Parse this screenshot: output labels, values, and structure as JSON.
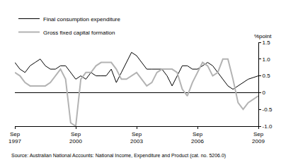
{
  "chart_data": {
    "type": "line",
    "y_label": "%point",
    "source": "Source: Australian National Accounts: National Income, Expenditure and Product (cat. no. 5206.0)",
    "categories": [
      "Sep 1997",
      null,
      null,
      null,
      null,
      null,
      null,
      null,
      null,
      null,
      null,
      null,
      "Sep 2000",
      null,
      null,
      null,
      null,
      null,
      null,
      null,
      null,
      null,
      null,
      null,
      "Sep 2003",
      null,
      null,
      null,
      null,
      null,
      null,
      null,
      null,
      null,
      null,
      null,
      "Sep 2006",
      null,
      null,
      null,
      null,
      null,
      null,
      null,
      null,
      null,
      null,
      null,
      "Sep 2009"
    ],
    "series": [
      {
        "name": "Final consumption expenditure",
        "color": "#000000",
        "values": [
          0.9,
          0.7,
          0.6,
          0.8,
          0.9,
          1.0,
          0.8,
          0.7,
          0.7,
          0.8,
          0.8,
          0.6,
          0.4,
          0.5,
          0.4,
          0.6,
          0.5,
          0.5,
          0.5,
          0.7,
          0.3,
          0.6,
          0.9,
          1.2,
          1.1,
          0.9,
          0.7,
          0.7,
          0.7,
          0.7,
          0.5,
          0.2,
          0.5,
          0.8,
          0.8,
          0.7,
          0.7,
          0.8,
          0.9,
          0.8,
          0.6,
          0.4,
          0.2,
          0.1,
          0.2,
          0.3,
          0.4,
          0.45,
          0.5
        ]
      },
      {
        "name": "Gross fixed capital formation",
        "color": "#b3b3b3",
        "values": [
          0.6,
          0.5,
          0.3,
          0.2,
          0.2,
          0.2,
          0.2,
          0.3,
          0.5,
          0.7,
          0.4,
          -0.9,
          -1.0,
          0.4,
          0.6,
          0.6,
          0.8,
          0.9,
          0.9,
          0.9,
          0.7,
          0.4,
          0.4,
          0.5,
          0.6,
          0.4,
          0.2,
          0.3,
          0.6,
          0.7,
          0.7,
          0.7,
          0.6,
          0.1,
          -0.1,
          0.3,
          0.6,
          0.9,
          0.8,
          0.5,
          0.6,
          1.0,
          1.0,
          0.4,
          -0.3,
          -0.5,
          -0.3,
          -0.2,
          -0.1
        ]
      }
    ],
    "ylim": [
      -1.0,
      1.5
    ],
    "yticks": [
      {
        "value": -1.0,
        "label": "-1.0"
      },
      -0.5,
      0,
      0.5,
      {
        "value": 1.0,
        "label": "1.0"
      },
      1.5
    ],
    "grid": false,
    "legend": "top left"
  }
}
